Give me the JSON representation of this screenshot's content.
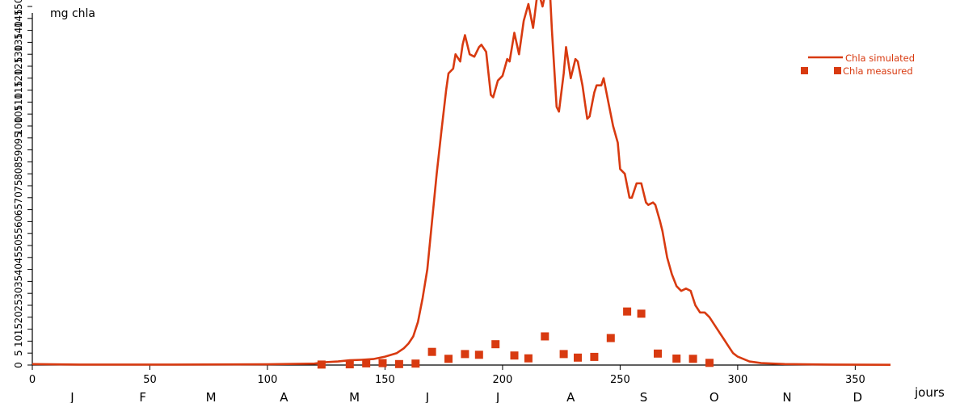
{
  "chart_data": {
    "type": "line",
    "ylabel": "mg chla",
    "xlabel": "jours",
    "xlim": [
      0,
      365
    ],
    "ylim": [
      0,
      150
    ],
    "x_ticks": [
      0,
      50,
      100,
      150,
      200,
      250,
      300,
      350
    ],
    "y_ticks": [
      0,
      5,
      10,
      15,
      20,
      25,
      30,
      35,
      40,
      45,
      50,
      55,
      60,
      65,
      70,
      75,
      80,
      85,
      90,
      95,
      100,
      105,
      110,
      115,
      120,
      125,
      130,
      135,
      140,
      145,
      150
    ],
    "months": [
      {
        "label": "J",
        "day": 17
      },
      {
        "label": "F",
        "day": 47
      },
      {
        "label": "M",
        "day": 76
      },
      {
        "label": "A",
        "day": 107
      },
      {
        "label": "M",
        "day": 137
      },
      {
        "label": "J",
        "day": 168
      },
      {
        "label": "J",
        "day": 198
      },
      {
        "label": "A",
        "day": 229
      },
      {
        "label": "S",
        "day": 260
      },
      {
        "label": "O",
        "day": 290
      },
      {
        "label": "N",
        "day": 321
      },
      {
        "label": "D",
        "day": 351
      }
    ],
    "legend_position": "top-right",
    "colors": {
      "series": "#d83a10"
    },
    "series": [
      {
        "name": "Chla simulated",
        "kind": "line",
        "points": [
          [
            0,
            0.4
          ],
          [
            20,
            0.2
          ],
          [
            60,
            0.2
          ],
          [
            100,
            0.3
          ],
          [
            120,
            0.6
          ],
          [
            125,
            1.2
          ],
          [
            130,
            1.5
          ],
          [
            135,
            2
          ],
          [
            140,
            2.2
          ],
          [
            145,
            2.5
          ],
          [
            150,
            3.5
          ],
          [
            155,
            5
          ],
          [
            158,
            7
          ],
          [
            160,
            9
          ],
          [
            162,
            12
          ],
          [
            164,
            18
          ],
          [
            166,
            28
          ],
          [
            168,
            40
          ],
          [
            170,
            60
          ],
          [
            172,
            80
          ],
          [
            174,
            98
          ],
          [
            176,
            115
          ],
          [
            177,
            122
          ],
          [
            179,
            124
          ],
          [
            180,
            130
          ],
          [
            182,
            127
          ],
          [
            183,
            134
          ],
          [
            184,
            138
          ],
          [
            186,
            130
          ],
          [
            188,
            129
          ],
          [
            190,
            133
          ],
          [
            191,
            134
          ],
          [
            193,
            131
          ],
          [
            195,
            113
          ],
          [
            196,
            112
          ],
          [
            198,
            119
          ],
          [
            200,
            121
          ],
          [
            202,
            128
          ],
          [
            203,
            127
          ],
          [
            205,
            139
          ],
          [
            207,
            130
          ],
          [
            209,
            144
          ],
          [
            211,
            151
          ],
          [
            213,
            141
          ],
          [
            215,
            157
          ],
          [
            217,
            150
          ],
          [
            219,
            162
          ],
          [
            220,
            165
          ],
          [
            221,
            140
          ],
          [
            223,
            108
          ],
          [
            224,
            106
          ],
          [
            226,
            122
          ],
          [
            227,
            133
          ],
          [
            229,
            120
          ],
          [
            231,
            128
          ],
          [
            232,
            127
          ],
          [
            234,
            117
          ],
          [
            236,
            103
          ],
          [
            237,
            104
          ],
          [
            239,
            114
          ],
          [
            240,
            117
          ],
          [
            242,
            117
          ],
          [
            243,
            120
          ],
          [
            245,
            110
          ],
          [
            247,
            100
          ],
          [
            249,
            93
          ],
          [
            250,
            82
          ],
          [
            252,
            80
          ],
          [
            254,
            70
          ],
          [
            255,
            70
          ],
          [
            257,
            76
          ],
          [
            259,
            76
          ],
          [
            261,
            68
          ],
          [
            262,
            67
          ],
          [
            264,
            68
          ],
          [
            265,
            67
          ],
          [
            267,
            60
          ],
          [
            268,
            56
          ],
          [
            270,
            45
          ],
          [
            272,
            38
          ],
          [
            274,
            33
          ],
          [
            276,
            31
          ],
          [
            278,
            32
          ],
          [
            280,
            31
          ],
          [
            282,
            25
          ],
          [
            284,
            22
          ],
          [
            286,
            22
          ],
          [
            288,
            20
          ],
          [
            290,
            17
          ],
          [
            292,
            14
          ],
          [
            294,
            11
          ],
          [
            296,
            8
          ],
          [
            298,
            5
          ],
          [
            300,
            3.5
          ],
          [
            305,
            1.5
          ],
          [
            310,
            0.8
          ],
          [
            320,
            0.4
          ],
          [
            340,
            0.2
          ],
          [
            365,
            0.1
          ]
        ]
      },
      {
        "name": "Chla measured",
        "kind": "marker",
        "points": [
          [
            123,
            0.2
          ],
          [
            135,
            0.3
          ],
          [
            142,
            0.7
          ],
          [
            149,
            0.8
          ],
          [
            156,
            0.4
          ],
          [
            163,
            0.6
          ],
          [
            170,
            5.5
          ],
          [
            177,
            2.6
          ],
          [
            184,
            4.6
          ],
          [
            190,
            4.3
          ],
          [
            197,
            8.7
          ],
          [
            205,
            4
          ],
          [
            211,
            2.8
          ],
          [
            218,
            12
          ],
          [
            226,
            4.6
          ],
          [
            232,
            3.1
          ],
          [
            239,
            3.4
          ],
          [
            246,
            11.3
          ],
          [
            253,
            22.4
          ],
          [
            259,
            21.5
          ],
          [
            266,
            4.8
          ],
          [
            274,
            2.7
          ],
          [
            281,
            2.6
          ],
          [
            288,
            0.9
          ]
        ]
      }
    ]
  }
}
